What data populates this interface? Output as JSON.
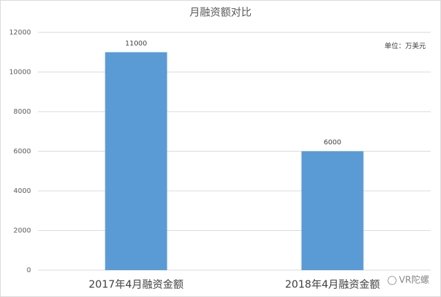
{
  "chart_data": {
    "type": "bar",
    "title": "月融资额对比",
    "categories": [
      "2017年4月融资金额",
      "2018年4月融资金额"
    ],
    "values": [
      11000,
      6000
    ],
    "color": "#5b9bd5",
    "ylim": [
      0,
      12000
    ],
    "yticks": [
      0,
      2000,
      4000,
      6000,
      8000,
      10000,
      12000
    ],
    "grid": true,
    "annotation": "单位：万美元",
    "watermark": "VR陀螺"
  }
}
